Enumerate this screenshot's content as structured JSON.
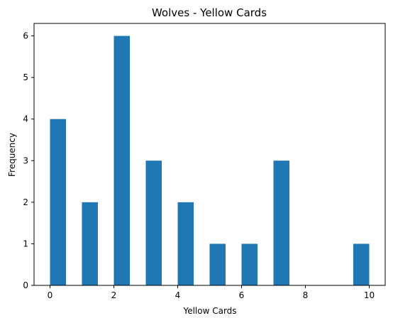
{
  "chart_data": {
    "type": "bar",
    "title": "Wolves - Yellow Cards",
    "xlabel": "Yellow Cards",
    "ylabel": "Frequency",
    "bin_width": 0.5,
    "bins": [
      {
        "start": 0.0,
        "end": 0.5,
        "count": 4
      },
      {
        "start": 0.5,
        "end": 1.0,
        "count": 0
      },
      {
        "start": 1.0,
        "end": 1.5,
        "count": 2
      },
      {
        "start": 1.5,
        "end": 2.0,
        "count": 0
      },
      {
        "start": 2.0,
        "end": 2.5,
        "count": 6
      },
      {
        "start": 2.5,
        "end": 3.0,
        "count": 0
      },
      {
        "start": 3.0,
        "end": 3.5,
        "count": 3
      },
      {
        "start": 3.5,
        "end": 4.0,
        "count": 0
      },
      {
        "start": 4.0,
        "end": 4.5,
        "count": 2
      },
      {
        "start": 4.5,
        "end": 5.0,
        "count": 0
      },
      {
        "start": 5.0,
        "end": 5.5,
        "count": 1
      },
      {
        "start": 5.5,
        "end": 6.0,
        "count": 0
      },
      {
        "start": 6.0,
        "end": 6.5,
        "count": 1
      },
      {
        "start": 6.5,
        "end": 7.0,
        "count": 0
      },
      {
        "start": 7.0,
        "end": 7.5,
        "count": 3
      },
      {
        "start": 7.5,
        "end": 8.0,
        "count": 0
      },
      {
        "start": 8.0,
        "end": 8.5,
        "count": 0
      },
      {
        "start": 8.5,
        "end": 9.0,
        "count": 0
      },
      {
        "start": 9.0,
        "end": 9.5,
        "count": 0
      },
      {
        "start": 9.5,
        "end": 10.0,
        "count": 1
      }
    ],
    "xlim": [
      -0.5,
      10.5
    ],
    "ylim": [
      0,
      6.3
    ],
    "xticks": [
      0,
      2,
      4,
      6,
      8,
      10
    ],
    "yticks": [
      0,
      1,
      2,
      3,
      4,
      5,
      6
    ],
    "bar_color": "#1f77b4",
    "grid": false,
    "legend": "none"
  }
}
